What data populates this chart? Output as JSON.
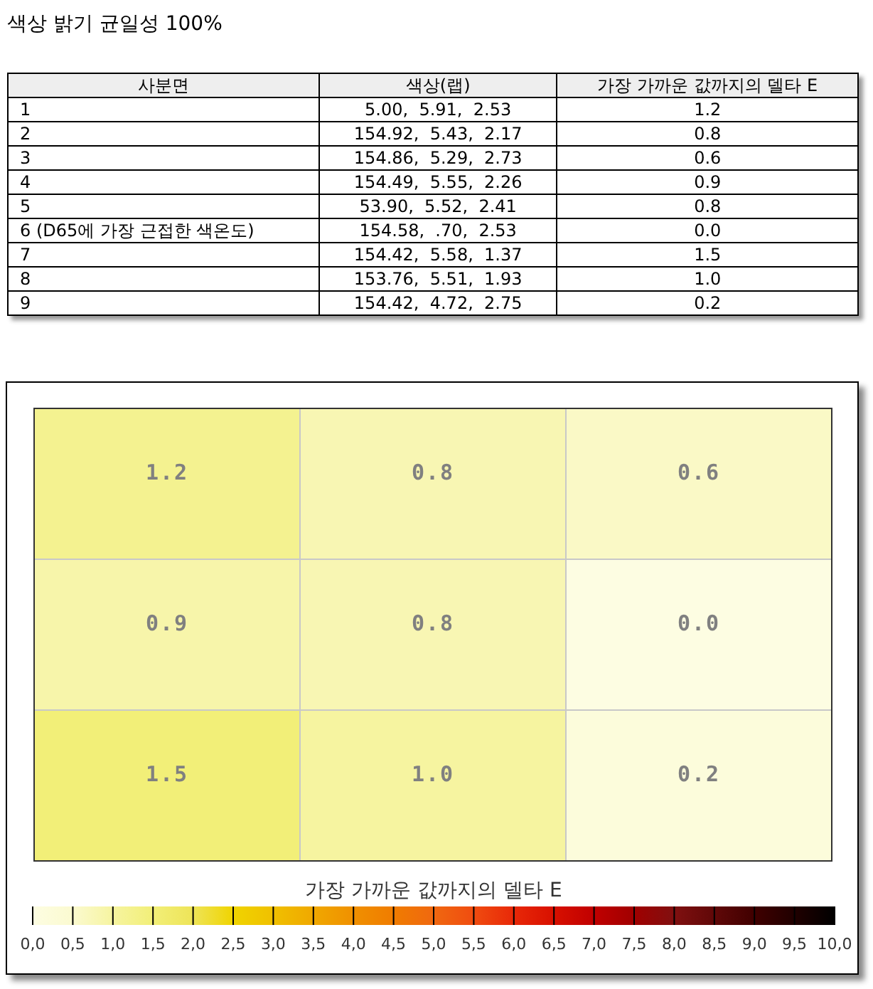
{
  "chart_data": [
    {
      "type": "other",
      "title": "색상 밝기 균일성 100%",
      "categories": [
        "사분면",
        "색상(랩)",
        "가장 가까운 값까지의 델타 E"
      ],
      "annotations": [
        "1",
        "5.00,  5.91,  2.53",
        "1.2",
        "2",
        "154.92,  5.43,  2.17",
        "0.8",
        "3",
        "154.86,  5.29,  2.73",
        "0.6",
        "4",
        "154.49,  5.55,  2.26",
        "0.9",
        "5",
        "53.90,  5.52,  2.41",
        "0.8",
        "6 (D65에 가장 근접한 색온도)",
        "154.58,  .70,  2.53",
        "0.0",
        "7",
        "154.42,  5.58,  1.37",
        "1.5",
        "8",
        "153.76,  5.51,  1.93",
        "1.0",
        "9",
        "154.42,  4.72,  2.75",
        "0.2"
      ]
    },
    {
      "type": "heatmap",
      "categories": [
        null,
        null,
        null
      ],
      "y_categories": [
        null,
        null,
        null
      ],
      "cells": [
        [
          1.2,
          0.8,
          0.6
        ],
        [
          0.9,
          0.8,
          0.0
        ],
        [
          1.5,
          1.0,
          0.2
        ]
      ],
      "cell_labels": [
        [
          "1.2",
          "0.8",
          "0.6"
        ],
        [
          "0.9",
          "0.8",
          "0.0"
        ],
        [
          "1.5",
          "1.0",
          "0.2"
        ]
      ],
      "grid": true,
      "clabel": "가장 가까운 값까지의 델타 E",
      "clim": [
        0,
        10
      ],
      "cticks": [
        {
          "value": 0,
          "label": "0,0"
        },
        {
          "value": 0.5,
          "label": "0,5"
        },
        {
          "value": 1,
          "label": "1,0"
        },
        {
          "value": 1.5,
          "label": "1,5"
        },
        {
          "value": 2,
          "label": "2,0"
        },
        {
          "value": 2.5,
          "label": "2,5"
        },
        {
          "value": 3,
          "label": "3,0"
        },
        {
          "value": 3.5,
          "label": "3,5"
        },
        {
          "value": 4,
          "label": "4,0"
        },
        {
          "value": 4.5,
          "label": "4,5"
        },
        {
          "value": 5,
          "label": "5,0"
        },
        {
          "value": 5.5,
          "label": "5,5"
        },
        {
          "value": 6,
          "label": "6,0"
        },
        {
          "value": 6.5,
          "label": "6,5"
        },
        {
          "value": 7,
          "label": "7,0"
        },
        {
          "value": 7.5,
          "label": "7,5"
        },
        {
          "value": 8,
          "label": "8,0"
        },
        {
          "value": 8.5,
          "label": "8,5"
        },
        {
          "value": 9,
          "label": "9,0"
        },
        {
          "value": 9.5,
          "label": "9,5"
        },
        {
          "value": 10,
          "label": "10,0"
        }
      ]
    }
  ]
}
